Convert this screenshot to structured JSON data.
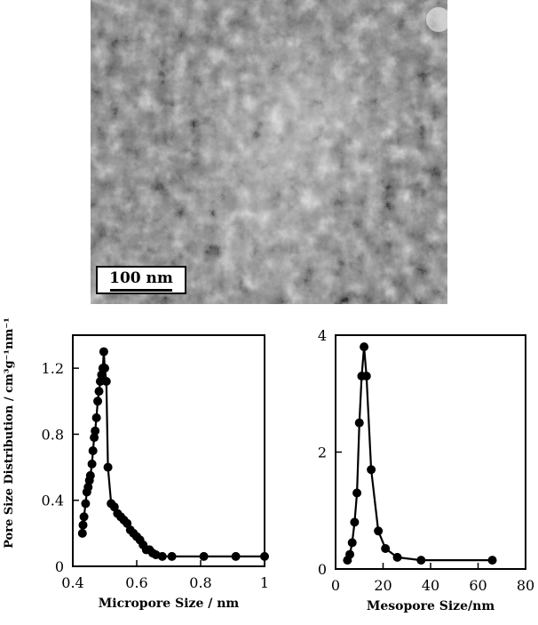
{
  "image": {
    "scale_bar_label": "100 nm"
  },
  "chart_data": [
    {
      "type": "line",
      "xlabel": "Micropore Size / nm",
      "ylabel": "Pore Size Distribution / cm³g⁻¹nm⁻¹",
      "xlim": [
        0.4,
        1.0
      ],
      "ylim": [
        0,
        1.4
      ],
      "xticks": [
        0.4,
        0.6,
        0.8,
        1
      ],
      "xtick_labels": [
        "0.4",
        "0.6",
        "0.8",
        "1"
      ],
      "yticks": [
        0,
        0.4,
        0.8,
        1.2
      ],
      "ytick_labels": [
        "0",
        "0.4",
        "0.8",
        "1.2"
      ],
      "x": [
        0.43,
        0.432,
        0.435,
        0.44,
        0.444,
        0.448,
        0.452,
        0.455,
        0.46,
        0.463,
        0.467,
        0.47,
        0.474,
        0.478,
        0.482,
        0.486,
        0.49,
        0.494,
        0.497,
        0.5,
        0.505,
        0.51,
        0.52,
        0.53,
        0.54,
        0.55,
        0.56,
        0.57,
        0.58,
        0.59,
        0.6,
        0.61,
        0.62,
        0.63,
        0.64,
        0.65,
        0.66,
        0.68,
        0.71,
        0.81,
        0.91,
        1.0
      ],
      "y": [
        0.2,
        0.25,
        0.3,
        0.38,
        0.45,
        0.48,
        0.52,
        0.55,
        0.62,
        0.7,
        0.78,
        0.82,
        0.9,
        1.0,
        1.06,
        1.12,
        1.16,
        1.2,
        1.3,
        1.2,
        1.12,
        0.6,
        0.38,
        0.36,
        0.32,
        0.3,
        0.28,
        0.26,
        0.22,
        0.2,
        0.18,
        0.16,
        0.13,
        0.1,
        0.1,
        0.08,
        0.07,
        0.06,
        0.06,
        0.06,
        0.06,
        0.06
      ],
      "grid": false
    },
    {
      "type": "line",
      "xlabel": "Mesopore Size/nm",
      "ylabel": "",
      "xlim": [
        0,
        80
      ],
      "ylim": [
        0,
        4
      ],
      "xticks": [
        0,
        20,
        40,
        60,
        80
      ],
      "xtick_labels": [
        "0",
        "20",
        "40",
        "60",
        "80"
      ],
      "yticks": [
        0,
        2,
        4
      ],
      "ytick_labels": [
        "0",
        "2",
        "4"
      ],
      "x": [
        5,
        6,
        7,
        8,
        9,
        10,
        11,
        12,
        13,
        15,
        18,
        21,
        26,
        36,
        66
      ],
      "y": [
        0.15,
        0.25,
        0.45,
        0.8,
        1.3,
        2.5,
        3.3,
        3.8,
        3.3,
        1.7,
        0.65,
        0.35,
        0.2,
        0.15,
        0.15
      ],
      "grid": false
    }
  ]
}
